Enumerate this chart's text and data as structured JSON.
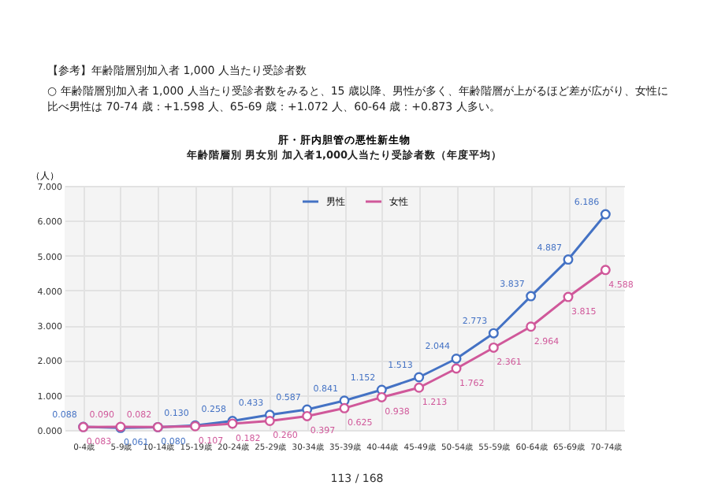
{
  "chart_data": {
    "type": "line",
    "title": "肝・肝内胆管の悪性新生物",
    "subtitle": "年齢階層別 男女別 加入者1,000人当たり受診者数（年度平均）",
    "ylabel": "（人）",
    "annotations": [
      "【参考】年齢階層別加入者 1,000 人当たり受診者数",
      "○ 年齢階層別加入者 1,000 人当たり受診者数をみると、15 歳以降、男性が多く、年齢階層が上がるほど差が広がり、女性に比べ男性は 70-74 歳：+1.598 人、65-69 歳：+1.072 人、60-64 歳：+0.873 人多い。",
      "113 / 168"
    ],
    "categories": [
      "0-4歳",
      "5-9歳",
      "10-14歳",
      "15-19歳",
      "20-24歳",
      "25-29歳",
      "30-34歳",
      "35-39歳",
      "40-44歳",
      "45-49歳",
      "50-54歳",
      "55-59歳",
      "60-64歳",
      "65-69歳",
      "70-74歳"
    ],
    "series": [
      {
        "name": "男性",
        "color": "#4472c4",
        "values": [
          0.088,
          0.061,
          0.08,
          0.13,
          0.258,
          0.433,
          0.587,
          0.841,
          1.152,
          1.513,
          2.044,
          2.773,
          3.837,
          4.887,
          6.186
        ],
        "value_labels": [
          "0.088",
          "0.061",
          "0.080",
          "0.130",
          "0.258",
          "0.433",
          "0.587",
          "0.841",
          "1.152",
          "1.513",
          "2.044",
          "2.773",
          "3.837",
          "4.887",
          "6.186"
        ]
      },
      {
        "name": "女性",
        "color": "#d0589a",
        "values": [
          0.083,
          0.09,
          0.082,
          0.107,
          0.182,
          0.26,
          0.397,
          0.625,
          0.938,
          1.213,
          1.762,
          2.361,
          2.964,
          3.815,
          4.588
        ],
        "value_labels": [
          "0.083",
          "0.090",
          "0.082",
          "0.107",
          "0.182",
          "0.260",
          "0.397",
          "0.625",
          "0.938",
          "1.213",
          "1.762",
          "2.361",
          "2.964",
          "3.815",
          "4.588"
        ]
      }
    ],
    "ylim": [
      0,
      7
    ],
    "yticks": [
      {
        "value": 0,
        "label": "0.000"
      },
      {
        "value": 1,
        "label": "1.000"
      },
      {
        "value": 2,
        "label": "2.000"
      },
      {
        "value": 3,
        "label": "3.000"
      },
      {
        "value": 4,
        "label": "4.000"
      },
      {
        "value": 5,
        "label": "5.000"
      },
      {
        "value": 6,
        "label": "6.000"
      },
      {
        "value": 7,
        "label": "7.000"
      }
    ],
    "grid": true,
    "legend": "top",
    "marker": "circle",
    "line_style": "solid"
  }
}
